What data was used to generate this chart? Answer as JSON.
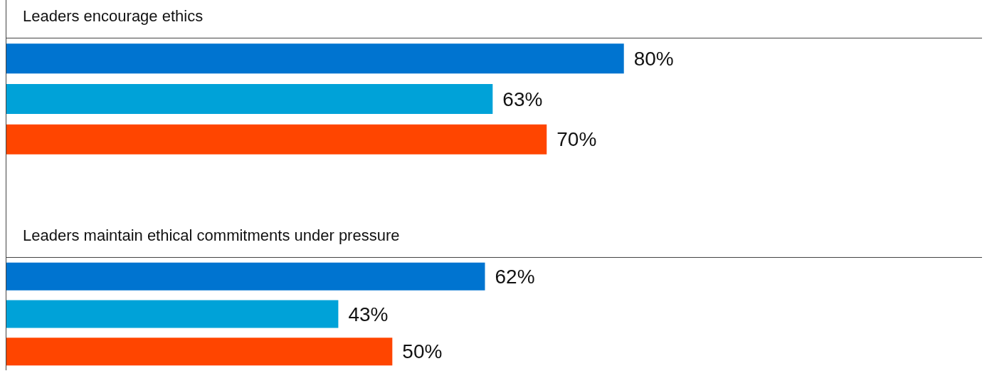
{
  "chart_data": [
    {
      "type": "bar",
      "orientation": "horizontal",
      "title": "Leaders encourage ethics",
      "categories": [
        null,
        null,
        null
      ],
      "values": [
        80,
        63,
        70
      ],
      "colors": [
        "#0074d0",
        "#00a2d8",
        "#ff4500"
      ],
      "value_labels": [
        "80%",
        "63%",
        "70%"
      ]
    },
    {
      "type": "bar",
      "orientation": "horizontal",
      "title": "Leaders maintain ethical commitments under pressure",
      "categories": [
        null,
        null,
        null
      ],
      "values": [
        62,
        43,
        50
      ],
      "colors": [
        "#0074d0",
        "#00a2d8",
        "#ff4500"
      ],
      "value_labels": [
        "62%",
        "43%",
        "50%"
      ]
    }
  ]
}
